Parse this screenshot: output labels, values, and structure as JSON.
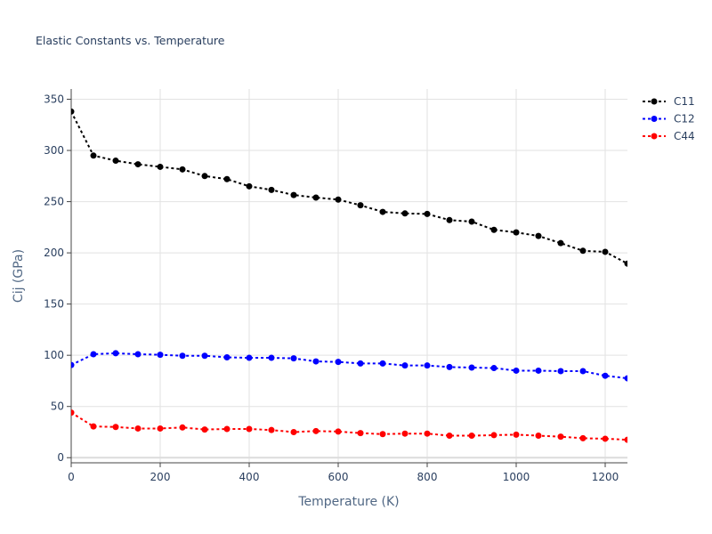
{
  "chart_data": {
    "type": "line",
    "title": "Elastic Constants vs. Temperature",
    "xlabel": "Temperature (K)",
    "ylabel": "Cij (GPa)",
    "xlim": [
      0,
      1250
    ],
    "ylim": [
      -5,
      360
    ],
    "xticks": [
      0,
      200,
      400,
      600,
      800,
      1000,
      1200
    ],
    "yticks": [
      0,
      50,
      100,
      150,
      200,
      250,
      300,
      350
    ],
    "grid": true,
    "legend_position": "top-right",
    "x": [
      0,
      50,
      100,
      150,
      200,
      250,
      300,
      350,
      400,
      450,
      500,
      550,
      600,
      650,
      700,
      750,
      800,
      850,
      900,
      950,
      1000,
      1050,
      1100,
      1150,
      1200,
      1250
    ],
    "series": [
      {
        "name": "C11",
        "color": "#000000",
        "values": [
          338,
          295,
          290,
          286.5,
          284,
          281.5,
          275,
          272,
          265,
          261.5,
          256.5,
          254,
          252,
          246.5,
          240,
          238.5,
          238,
          232,
          230.5,
          222.5,
          220,
          216.5,
          209.5,
          202,
          201,
          189.5
        ]
      },
      {
        "name": "C12",
        "color": "#0000ff",
        "values": [
          90.5,
          101,
          102,
          101,
          100.5,
          99.5,
          99.5,
          98,
          97.5,
          97.5,
          97,
          94,
          93.5,
          92,
          92,
          90,
          90,
          88.5,
          88,
          87.5,
          85,
          85,
          84.5,
          84.5,
          80,
          77.5
        ]
      },
      {
        "name": "C44",
        "color": "#ff0000",
        "values": [
          44,
          30.5,
          30,
          28.5,
          28.5,
          29.5,
          27.5,
          28,
          28,
          27,
          25,
          26,
          25.5,
          24,
          23,
          23.5,
          23.5,
          21.5,
          21.5,
          22,
          22.5,
          21.5,
          20.5,
          19,
          18.5,
          17.5
        ]
      }
    ]
  }
}
